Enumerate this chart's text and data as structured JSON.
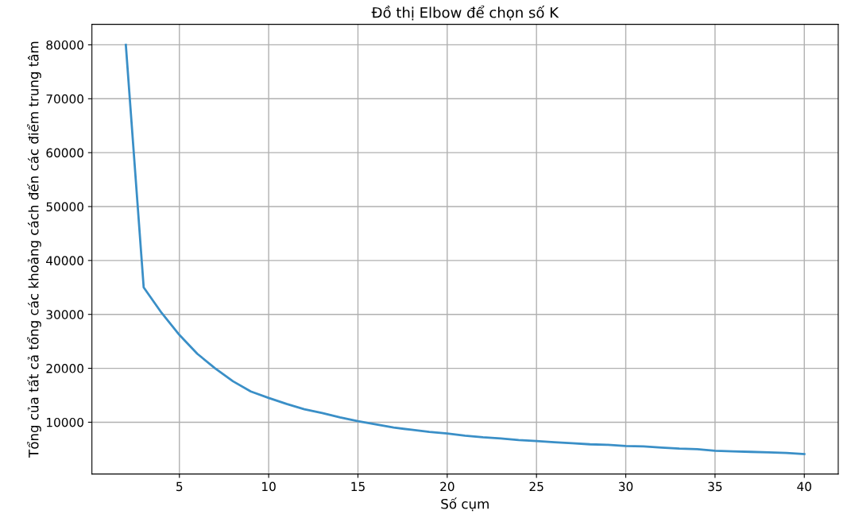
{
  "chart_data": {
    "type": "line",
    "title": "Đồ thị Elbow để chọn số K",
    "xlabel": "Số cụm",
    "ylabel": "Tổng của tất cả tổng các khoảng cách đến các điểm trung tâm",
    "x": [
      2,
      3,
      4,
      5,
      6,
      7,
      8,
      9,
      10,
      11,
      12,
      13,
      14,
      15,
      16,
      17,
      18,
      19,
      20,
      21,
      22,
      23,
      24,
      25,
      26,
      27,
      28,
      29,
      30,
      31,
      32,
      33,
      34,
      35,
      36,
      37,
      38,
      39,
      40
    ],
    "series": [
      {
        "color": "#3a8fc7",
        "values": [
          80000,
          35000,
          30300,
          26200,
          22700,
          20000,
          17600,
          15700,
          14500,
          13400,
          12400,
          11700,
          10900,
          10200,
          9600,
          9000,
          8600,
          8200,
          7900,
          7500,
          7200,
          7000,
          6700,
          6500,
          6300,
          6100,
          5900,
          5800,
          5600,
          5500,
          5300,
          5100,
          5000,
          4700,
          4600,
          4500,
          4400,
          4300,
          4100
        ]
      }
    ],
    "xlim": [
      0.1,
      41.9
    ],
    "ylim": [
      400,
      83800
    ],
    "xticks": [
      5,
      10,
      15,
      20,
      25,
      30,
      35,
      40
    ],
    "yticks": [
      10000,
      20000,
      30000,
      40000,
      50000,
      60000,
      70000,
      80000
    ],
    "grid": true
  }
}
